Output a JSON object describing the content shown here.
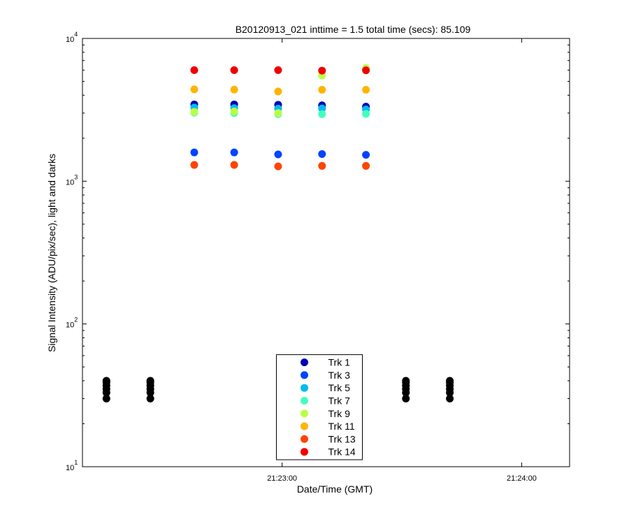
{
  "chart_data": {
    "type": "scatter",
    "title": "B20120913_021 inttime = 1.5 total time (secs): 85.109",
    "xlabel": "Date/Time (GMT)",
    "ylabel": "Signal Intensity (ADU/pix/sec), light and darks",
    "xlim": [
      "21:22:10",
      "21:24:12"
    ],
    "xticks": [
      "21:23:00",
      "21:24:00"
    ],
    "ylim": [
      10,
      10000
    ],
    "yscale": "log",
    "yticks": [
      {
        "value": 10,
        "label": "10",
        "exponent": "1"
      },
      {
        "value": 100,
        "label": "10",
        "exponent": "2"
      },
      {
        "value": 1000,
        "label": "10",
        "exponent": "3"
      },
      {
        "value": 10000,
        "label": "10",
        "exponent": "4"
      }
    ],
    "grid": false,
    "legend": "lower center",
    "series": [
      {
        "color": "#000000",
        "x": [
          "21:22:16",
          "21:22:16",
          "21:22:16",
          "21:22:16",
          "21:22:16",
          "21:22:16",
          "21:22:27",
          "21:22:27",
          "21:22:27",
          "21:22:27",
          "21:22:27",
          "21:22:27",
          "21:23:31",
          "21:23:31",
          "21:23:31",
          "21:23:31",
          "21:23:31",
          "21:23:31",
          "21:23:42",
          "21:23:42",
          "21:23:42",
          "21:23:42",
          "21:23:42",
          "21:23:42"
        ],
        "values": [
          30,
          33,
          35,
          37,
          39,
          40,
          30,
          33,
          35,
          37,
          39,
          40,
          30,
          33,
          35,
          37,
          39,
          40,
          30,
          33,
          35,
          37,
          39,
          40
        ]
      },
      {
        "name": "Trk 1",
        "color": "#0000b4",
        "x": [
          "21:22:38",
          "21:22:48",
          "21:22:59",
          "21:23:10",
          "21:23:21"
        ],
        "values": [
          3450,
          3450,
          3430,
          3400,
          3330
        ]
      },
      {
        "name": "Trk 3",
        "color": "#0044ff",
        "x": [
          "21:22:38",
          "21:22:48",
          "21:22:59",
          "21:23:10",
          "21:23:21"
        ],
        "values": [
          1590,
          1590,
          1540,
          1550,
          1530
        ]
      },
      {
        "name": "Trk 5",
        "color": "#00bbf0",
        "x": [
          "21:22:38",
          "21:22:48",
          "21:22:59",
          "21:23:10",
          "21:23:21"
        ],
        "values": [
          3280,
          3250,
          3220,
          3230,
          3180
        ]
      },
      {
        "name": "Trk 7",
        "color": "#44ffbb",
        "x": [
          "21:22:38",
          "21:22:48",
          "21:22:59",
          "21:23:10",
          "21:23:21"
        ],
        "values": [
          3020,
          3000,
          2950,
          2950,
          2960
        ]
      },
      {
        "name": "Trk 9",
        "color": "#bbff44",
        "x": [
          "21:22:38",
          "21:22:48",
          "21:22:59",
          "21:23:10",
          "21:23:21"
        ],
        "values": [
          3060,
          3080,
          3000,
          5500,
          6200
        ]
      },
      {
        "name": "Trk 11",
        "color": "#ffb400",
        "x": [
          "21:22:38",
          "21:22:48",
          "21:22:59",
          "21:23:10",
          "21:23:21"
        ],
        "values": [
          4400,
          4380,
          4250,
          4370,
          4370
        ]
      },
      {
        "name": "Trk 13",
        "color": "#ff4400",
        "x": [
          "21:22:38",
          "21:22:48",
          "21:22:59",
          "21:23:10",
          "21:23:21"
        ],
        "values": [
          1300,
          1300,
          1270,
          1280,
          1280
        ]
      },
      {
        "name": "Trk 14",
        "color": "#f00000",
        "x": [
          "21:22:38",
          "21:22:48",
          "21:22:59",
          "21:23:10",
          "21:23:21"
        ],
        "values": [
          6000,
          6000,
          6000,
          5950,
          5980
        ]
      }
    ]
  }
}
